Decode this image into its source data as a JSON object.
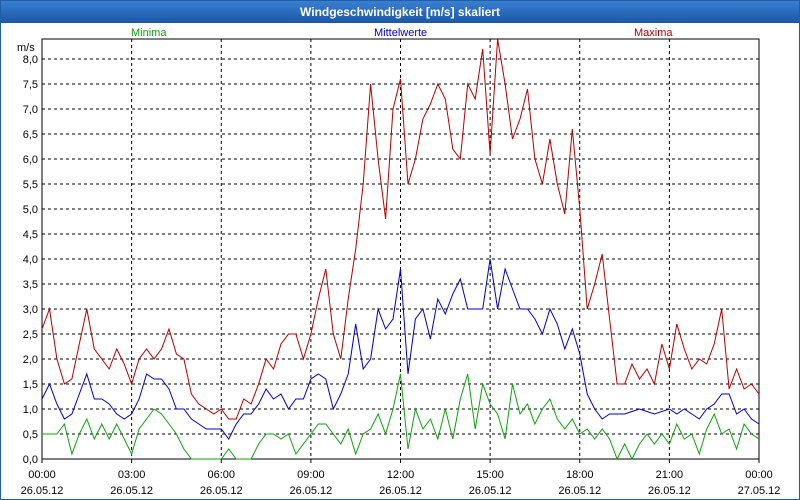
{
  "window": {
    "title": "Windgeschwindigkeit [m/s] skaliert"
  },
  "chart_data": {
    "type": "line",
    "title": "Windgeschwindigkeit [m/s] skaliert",
    "ylabel": "m/s",
    "ylim": [
      0,
      8.4
    ],
    "xlim": [
      0,
      24
    ],
    "grid": true,
    "y_ticks": [
      "0,0",
      "0,5",
      "1,0",
      "1,5",
      "2,0",
      "2,5",
      "3,0",
      "3,5",
      "4,0",
      "4,5",
      "5,0",
      "5,5",
      "6,0",
      "6,5",
      "7,0",
      "7,5",
      "8,0"
    ],
    "x_ticks": [
      {
        "time": "00:00",
        "date": "26.05.12"
      },
      {
        "time": "03:00",
        "date": "26.05.12"
      },
      {
        "time": "06:00",
        "date": "26.05.12"
      },
      {
        "time": "09:00",
        "date": "26.05.12"
      },
      {
        "time": "12:00",
        "date": "26.05.12"
      },
      {
        "time": "15:00",
        "date": "26.05.12"
      },
      {
        "time": "18:00",
        "date": "26.05.12"
      },
      {
        "time": "21:00",
        "date": "26.05.12"
      },
      {
        "time": "00:00",
        "date": "27.05.12"
      }
    ],
    "series": [
      {
        "name": "Minima",
        "color": "#0fa10f",
        "points": [
          [
            0,
            0.5
          ],
          [
            0.5,
            0.5
          ],
          [
            0.75,
            0.7
          ],
          [
            1,
            0.1
          ],
          [
            1.25,
            0.5
          ],
          [
            1.5,
            0.8
          ],
          [
            1.75,
            0.4
          ],
          [
            2,
            0.7
          ],
          [
            2.25,
            0.4
          ],
          [
            2.5,
            0.7
          ],
          [
            2.75,
            0.4
          ],
          [
            3,
            0.1
          ],
          [
            3.25,
            0.6
          ],
          [
            3.5,
            0.8
          ],
          [
            3.75,
            1.0
          ],
          [
            4,
            0.9
          ],
          [
            4.25,
            0.7
          ],
          [
            4.5,
            0.5
          ],
          [
            4.75,
            0.2
          ],
          [
            5,
            0.0
          ],
          [
            5.5,
            0.0
          ],
          [
            6,
            0.0
          ],
          [
            6.25,
            0.2
          ],
          [
            6.5,
            0.0
          ],
          [
            7,
            0.0
          ],
          [
            7.25,
            0.3
          ],
          [
            7.5,
            0.5
          ],
          [
            7.75,
            0.5
          ],
          [
            8,
            0.4
          ],
          [
            8.25,
            0.5
          ],
          [
            8.5,
            0.1
          ],
          [
            8.75,
            0.3
          ],
          [
            9,
            0.5
          ],
          [
            9.25,
            0.7
          ],
          [
            9.5,
            0.7
          ],
          [
            9.75,
            0.5
          ],
          [
            10,
            0.3
          ],
          [
            10.25,
            0.6
          ],
          [
            10.5,
            0.1
          ],
          [
            10.75,
            0.5
          ],
          [
            11,
            0.6
          ],
          [
            11.25,
            0.9
          ],
          [
            11.5,
            0.5
          ],
          [
            11.75,
            1.0
          ],
          [
            12,
            1.7
          ],
          [
            12.25,
            0.2
          ],
          [
            12.5,
            1.0
          ],
          [
            12.75,
            0.6
          ],
          [
            13,
            0.8
          ],
          [
            13.25,
            0.4
          ],
          [
            13.5,
            1.0
          ],
          [
            13.75,
            0.4
          ],
          [
            14,
            1.2
          ],
          [
            14.25,
            1.7
          ],
          [
            14.5,
            0.6
          ],
          [
            14.75,
            1.5
          ],
          [
            15,
            1.1
          ],
          [
            15.25,
            0.9
          ],
          [
            15.5,
            0.4
          ],
          [
            15.75,
            1.5
          ],
          [
            16,
            0.9
          ],
          [
            16.25,
            1.1
          ],
          [
            16.5,
            0.7
          ],
          [
            16.75,
            1.0
          ],
          [
            17,
            1.2
          ],
          [
            17.25,
            0.8
          ],
          [
            17.5,
            0.6
          ],
          [
            17.75,
            0.8
          ],
          [
            18,
            0.5
          ],
          [
            18.25,
            0.6
          ],
          [
            18.5,
            0.4
          ],
          [
            18.75,
            0.6
          ],
          [
            19,
            0.4
          ],
          [
            19.25,
            0.0
          ],
          [
            19.5,
            0.3
          ],
          [
            19.75,
            0.0
          ],
          [
            20,
            0.3
          ],
          [
            20.25,
            0.5
          ],
          [
            20.5,
            0.3
          ],
          [
            20.75,
            0.5
          ],
          [
            21,
            0.3
          ],
          [
            21.25,
            0.7
          ],
          [
            21.5,
            0.4
          ],
          [
            21.75,
            0.5
          ],
          [
            22,
            0.1
          ],
          [
            22.25,
            0.6
          ],
          [
            22.5,
            0.9
          ],
          [
            22.75,
            0.5
          ],
          [
            23,
            0.6
          ],
          [
            23.25,
            0.2
          ],
          [
            23.5,
            0.7
          ],
          [
            23.75,
            0.5
          ],
          [
            24,
            0.4
          ]
        ]
      },
      {
        "name": "Mittelwerte",
        "color": "#0000c8",
        "points": [
          [
            0,
            1.2
          ],
          [
            0.25,
            1.5
          ],
          [
            0.5,
            1.1
          ],
          [
            0.75,
            0.8
          ],
          [
            1,
            0.9
          ],
          [
            1.25,
            1.3
          ],
          [
            1.5,
            1.7
          ],
          [
            1.75,
            1.2
          ],
          [
            2,
            1.2
          ],
          [
            2.25,
            1.1
          ],
          [
            2.5,
            0.9
          ],
          [
            2.75,
            0.8
          ],
          [
            3,
            0.9
          ],
          [
            3.25,
            1.2
          ],
          [
            3.5,
            1.7
          ],
          [
            3.75,
            1.6
          ],
          [
            4,
            1.6
          ],
          [
            4.25,
            1.4
          ],
          [
            4.5,
            1.0
          ],
          [
            4.75,
            1.0
          ],
          [
            5,
            0.8
          ],
          [
            5.25,
            0.7
          ],
          [
            5.5,
            0.6
          ],
          [
            5.75,
            0.6
          ],
          [
            6,
            0.6
          ],
          [
            6.25,
            0.4
          ],
          [
            6.5,
            0.7
          ],
          [
            6.75,
            0.9
          ],
          [
            7,
            0.9
          ],
          [
            7.25,
            1.1
          ],
          [
            7.5,
            1.4
          ],
          [
            7.75,
            1.2
          ],
          [
            8,
            1.3
          ],
          [
            8.25,
            1.0
          ],
          [
            8.5,
            1.2
          ],
          [
            8.75,
            1.2
          ],
          [
            9,
            1.6
          ],
          [
            9.25,
            1.7
          ],
          [
            9.5,
            1.6
          ],
          [
            9.75,
            1.0
          ],
          [
            10,
            1.3
          ],
          [
            10.25,
            1.7
          ],
          [
            10.5,
            2.7
          ],
          [
            10.75,
            1.8
          ],
          [
            11,
            2.0
          ],
          [
            11.25,
            3.0
          ],
          [
            11.5,
            2.6
          ],
          [
            11.75,
            2.8
          ],
          [
            12,
            3.8
          ],
          [
            12.25,
            1.7
          ],
          [
            12.5,
            2.8
          ],
          [
            12.75,
            3.0
          ],
          [
            13,
            2.4
          ],
          [
            13.25,
            3.2
          ],
          [
            13.5,
            2.9
          ],
          [
            13.75,
            3.3
          ],
          [
            14,
            3.6
          ],
          [
            14.25,
            3.0
          ],
          [
            14.5,
            3.0
          ],
          [
            14.75,
            3.0
          ],
          [
            15,
            4.0
          ],
          [
            15.25,
            3.0
          ],
          [
            15.5,
            3.8
          ],
          [
            15.75,
            3.4
          ],
          [
            16,
            3.0
          ],
          [
            16.25,
            3.0
          ],
          [
            16.5,
            2.8
          ],
          [
            16.75,
            2.5
          ],
          [
            17,
            3.0
          ],
          [
            17.25,
            2.7
          ],
          [
            17.5,
            2.2
          ],
          [
            17.75,
            2.6
          ],
          [
            18,
            2.1
          ],
          [
            18.25,
            1.3
          ],
          [
            18.5,
            1.0
          ],
          [
            18.75,
            0.8
          ],
          [
            19,
            0.9
          ],
          [
            19.5,
            0.9
          ],
          [
            20,
            1.0
          ],
          [
            20.5,
            0.9
          ],
          [
            21,
            1.0
          ],
          [
            21.25,
            0.9
          ],
          [
            21.5,
            1.0
          ],
          [
            21.75,
            0.9
          ],
          [
            22,
            0.8
          ],
          [
            22.25,
            1.0
          ],
          [
            22.5,
            1.1
          ],
          [
            22.75,
            1.3
          ],
          [
            23,
            1.3
          ],
          [
            23.25,
            0.9
          ],
          [
            23.5,
            1.0
          ],
          [
            23.75,
            0.8
          ],
          [
            24,
            0.7
          ]
        ]
      },
      {
        "name": "Maxima",
        "color": "#b40000",
        "points": [
          [
            0,
            2.6
          ],
          [
            0.25,
            3.0
          ],
          [
            0.5,
            2.0
          ],
          [
            0.75,
            1.5
          ],
          [
            1,
            1.6
          ],
          [
            1.25,
            2.3
          ],
          [
            1.5,
            3.0
          ],
          [
            1.75,
            2.2
          ],
          [
            2,
            2.0
          ],
          [
            2.25,
            1.8
          ],
          [
            2.5,
            2.2
          ],
          [
            2.75,
            1.9
          ],
          [
            3,
            1.5
          ],
          [
            3.25,
            2.0
          ],
          [
            3.5,
            2.2
          ],
          [
            3.75,
            2.0
          ],
          [
            4,
            2.2
          ],
          [
            4.25,
            2.6
          ],
          [
            4.5,
            2.1
          ],
          [
            4.75,
            2.0
          ],
          [
            5,
            1.3
          ],
          [
            5.25,
            1.1
          ],
          [
            5.5,
            1.0
          ],
          [
            5.75,
            0.9
          ],
          [
            6,
            1.0
          ],
          [
            6.25,
            0.8
          ],
          [
            6.5,
            0.8
          ],
          [
            6.75,
            1.2
          ],
          [
            7,
            1.1
          ],
          [
            7.25,
            1.5
          ],
          [
            7.5,
            2.0
          ],
          [
            7.75,
            1.8
          ],
          [
            8,
            2.3
          ],
          [
            8.25,
            2.5
          ],
          [
            8.5,
            2.5
          ],
          [
            8.75,
            2.0
          ],
          [
            9,
            2.5
          ],
          [
            9.25,
            3.2
          ],
          [
            9.5,
            3.8
          ],
          [
            9.75,
            2.5
          ],
          [
            10,
            2.0
          ],
          [
            10.25,
            3.2
          ],
          [
            10.5,
            4.2
          ],
          [
            10.75,
            5.5
          ],
          [
            11,
            7.5
          ],
          [
            11.25,
            6.0
          ],
          [
            11.5,
            4.8
          ],
          [
            11.75,
            7.0
          ],
          [
            12,
            7.6
          ],
          [
            12.25,
            5.5
          ],
          [
            12.5,
            6.0
          ],
          [
            12.75,
            6.8
          ],
          [
            13,
            7.1
          ],
          [
            13.25,
            7.5
          ],
          [
            13.5,
            7.2
          ],
          [
            13.75,
            6.2
          ],
          [
            14,
            6.0
          ],
          [
            14.25,
            7.5
          ],
          [
            14.5,
            7.2
          ],
          [
            14.75,
            8.2
          ],
          [
            15,
            6.1
          ],
          [
            15.25,
            8.4
          ],
          [
            15.5,
            7.5
          ],
          [
            15.75,
            6.4
          ],
          [
            16,
            6.8
          ],
          [
            16.25,
            7.4
          ],
          [
            16.5,
            6.0
          ],
          [
            16.75,
            5.5
          ],
          [
            17,
            6.4
          ],
          [
            17.25,
            5.5
          ],
          [
            17.5,
            4.9
          ],
          [
            17.75,
            6.6
          ],
          [
            18,
            5.0
          ],
          [
            18.25,
            3.0
          ],
          [
            18.5,
            3.5
          ],
          [
            18.75,
            4.1
          ],
          [
            19,
            2.8
          ],
          [
            19.25,
            1.5
          ],
          [
            19.5,
            1.5
          ],
          [
            19.75,
            1.9
          ],
          [
            20,
            1.6
          ],
          [
            20.25,
            1.8
          ],
          [
            20.5,
            1.5
          ],
          [
            20.75,
            2.3
          ],
          [
            21,
            1.8
          ],
          [
            21.25,
            2.7
          ],
          [
            21.5,
            2.2
          ],
          [
            21.75,
            1.8
          ],
          [
            22,
            2.0
          ],
          [
            22.25,
            1.9
          ],
          [
            22.5,
            2.3
          ],
          [
            22.75,
            3.0
          ],
          [
            23,
            1.4
          ],
          [
            23.25,
            1.8
          ],
          [
            23.5,
            1.4
          ],
          [
            23.75,
            1.5
          ],
          [
            24,
            1.3
          ]
        ]
      }
    ]
  }
}
